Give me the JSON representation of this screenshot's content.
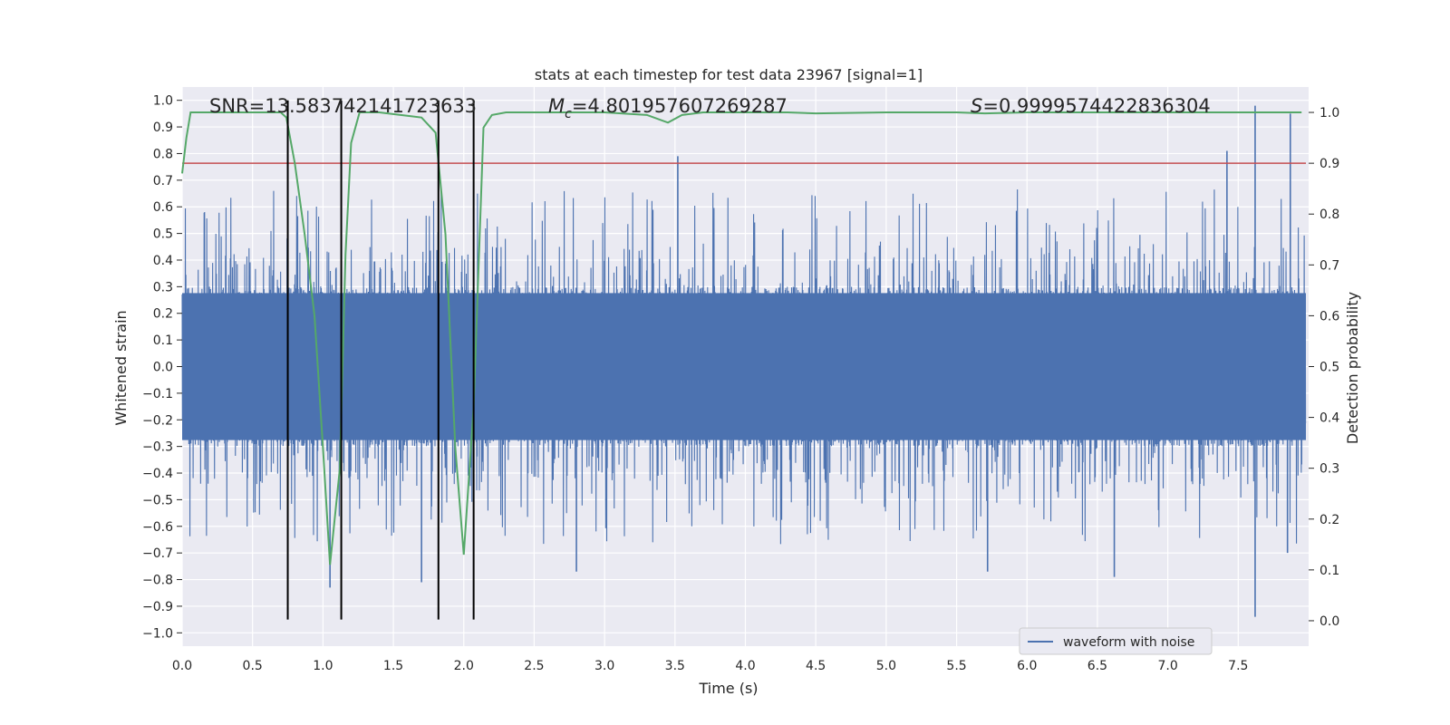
{
  "chart_data": {
    "type": "line",
    "title": "stats at each timestep for test data 23967 [signal=1]",
    "xlabel": "Time (s)",
    "ylabel": "Whitened strain",
    "ylabel_right": "Detection probability",
    "xlim": [
      0.0,
      8.0
    ],
    "ylim": [
      -1.05,
      1.05
    ],
    "ylim_right": [
      -0.05,
      1.05
    ],
    "xticks": [
      "0.0",
      "0.5",
      "1.0",
      "1.5",
      "2.0",
      "2.5",
      "3.0",
      "3.5",
      "4.0",
      "4.5",
      "5.0",
      "5.5",
      "6.0",
      "6.5",
      "7.0",
      "7.5"
    ],
    "xtick_values": [
      0.0,
      0.5,
      1.0,
      1.5,
      2.0,
      2.5,
      3.0,
      3.5,
      4.0,
      4.5,
      5.0,
      5.5,
      6.0,
      6.5,
      7.0,
      7.5
    ],
    "yticks": [
      "1.0",
      "0.9",
      "0.8",
      "0.7",
      "0.6",
      "0.5",
      "0.4",
      "0.3",
      "0.2",
      "0.1",
      "0.0",
      "−0.1",
      "−0.2",
      "−0.3",
      "−0.4",
      "−0.5",
      "−0.6",
      "−0.7",
      "−0.8",
      "−0.9",
      "−1.0"
    ],
    "ytick_values": [
      1.0,
      0.9,
      0.8,
      0.7,
      0.6,
      0.5,
      0.4,
      0.3,
      0.2,
      0.1,
      0.0,
      -0.1,
      -0.2,
      -0.3,
      -0.4,
      -0.5,
      -0.6,
      -0.7,
      -0.8,
      -0.9,
      -1.0
    ],
    "yticks_right": [
      "1.0",
      "0.9",
      "0.8",
      "0.7",
      "0.6",
      "0.5",
      "0.4",
      "0.3",
      "0.2",
      "0.1",
      "0.0"
    ],
    "ytick_right_values": [
      1.0,
      0.9,
      0.8,
      0.7,
      0.6,
      0.5,
      0.4,
      0.3,
      0.2,
      0.1,
      0.0
    ],
    "annotations": {
      "snr": "SNR=13.583742141723633",
      "mc_symbol": "M",
      "mc_sub": "c",
      "mc_value": "=4.801957607269287",
      "s_symbol": "S",
      "s_value": "=0.9999574422836304"
    },
    "threshold": {
      "value": 0.9,
      "color": "#c44e52"
    },
    "vertical_markers": {
      "x": [
        0.75,
        1.13,
        1.82,
        2.07
      ],
      "y_range": [
        -0.95,
        1.0
      ],
      "color": "#000000"
    },
    "series": [
      {
        "name": "waveform with noise",
        "axis": "left",
        "color": "#4c72b0",
        "kind": "noise",
        "envelope_core": 0.3,
        "peaks": [
          {
            "x": 3.52,
            "y": 0.79
          },
          {
            "x": 7.42,
            "y": 0.81
          },
          {
            "x": 7.62,
            "y": 0.98
          },
          {
            "x": 7.87,
            "y": 0.95
          },
          {
            "x": 7.62,
            "y": -0.94
          },
          {
            "x": 1.05,
            "y": -0.83
          },
          {
            "x": 1.7,
            "y": -0.81
          },
          {
            "x": 2.8,
            "y": -0.77
          },
          {
            "x": 5.72,
            "y": -0.77
          },
          {
            "x": 6.62,
            "y": -0.79
          },
          {
            "x": 7.85,
            "y": -0.7
          }
        ]
      },
      {
        "name": "detection probability",
        "axis": "right",
        "color": "#55a868",
        "x": [
          0.0,
          0.03,
          0.06,
          0.2,
          0.7,
          0.74,
          0.8,
          0.87,
          0.94,
          1.0,
          1.05,
          1.12,
          1.16,
          1.2,
          1.26,
          1.4,
          1.7,
          1.8,
          1.87,
          1.94,
          2.0,
          2.07,
          2.14,
          2.2,
          2.3,
          3.0,
          3.3,
          3.45,
          3.55,
          3.7,
          4.3,
          4.5,
          5.0,
          5.5,
          5.7,
          6.0,
          7.0,
          7.95
        ],
        "y": [
          0.88,
          0.95,
          1.0,
          1.0,
          1.0,
          0.99,
          0.9,
          0.76,
          0.6,
          0.34,
          0.11,
          0.3,
          0.72,
          0.94,
          1.0,
          1.0,
          0.99,
          0.96,
          0.76,
          0.34,
          0.13,
          0.42,
          0.97,
          0.995,
          1.0,
          1.0,
          0.995,
          0.98,
          0.995,
          1.0,
          1.0,
          0.998,
          1.0,
          1.0,
          0.998,
          1.0,
          1.0,
          1.0
        ]
      }
    ],
    "legend": {
      "label": "waveform with noise",
      "location": "lower-right"
    }
  }
}
